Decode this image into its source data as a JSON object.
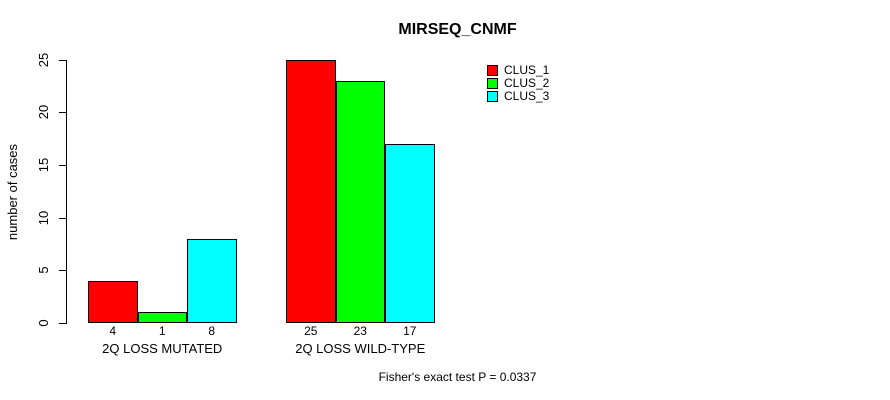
{
  "chart_data": {
    "type": "bar",
    "title": "MIRSEQ_CNMF",
    "ylabel": "number of cases",
    "ylim": [
      0,
      25
    ],
    "yticks": [
      0,
      5,
      10,
      15,
      20,
      25
    ],
    "categories": [
      "2Q LOSS MUTATED",
      "2Q LOSS WILD-TYPE"
    ],
    "series": [
      {
        "name": "CLUS_1",
        "color": "#ff0000",
        "values": [
          4,
          25
        ]
      },
      {
        "name": "CLUS_2",
        "color": "#00ff00",
        "values": [
          1,
          23
        ]
      },
      {
        "name": "CLUS_3",
        "color": "#00ffff",
        "values": [
          8,
          17
        ]
      }
    ],
    "bar_value_labels": [
      [
        4,
        1,
        8
      ],
      [
        25,
        23,
        17
      ]
    ],
    "legend": {
      "position": "top-right",
      "entries": [
        "CLUS_1",
        "CLUS_2",
        "CLUS_3"
      ]
    },
    "annotation": "Fisher's exact test P = 0.0337",
    "grid": false,
    "background": "#ffffff",
    "axis_color": "#000000"
  }
}
